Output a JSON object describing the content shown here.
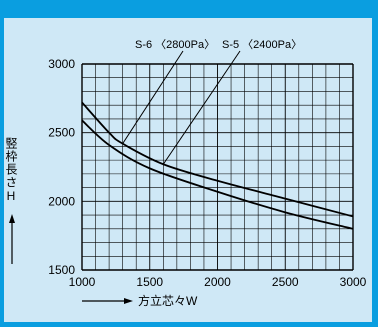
{
  "colors": {
    "frame_border": "#0a9ee0",
    "background": "#cfe8f6",
    "grid": "#000000",
    "curve": "#000000"
  },
  "chart_data": {
    "type": "line",
    "title": "",
    "xlabel": "方立芯々W",
    "ylabel": "竪枠長さH",
    "xlim": [
      1000,
      3000
    ],
    "ylim": [
      1500,
      3000
    ],
    "x_ticks": [
      "1000",
      "1500",
      "2000",
      "2500",
      "3000"
    ],
    "y_ticks": [
      "1500",
      "2000",
      "2500",
      "3000"
    ],
    "x_tick_values": [
      1000,
      1500,
      2000,
      2500,
      3000
    ],
    "y_tick_values": [
      1500,
      2000,
      2500,
      3000
    ],
    "grid": true,
    "x_grid_step": 100,
    "y_grid_step": 100,
    "series": [
      {
        "name": "S-6 〈2800Pa〉",
        "x": [
          1000,
          1200,
          1300,
          1600,
          2000,
          2500,
          3000
        ],
        "y": [
          2720,
          2500,
          2420,
          2270,
          2150,
          2020,
          1890
        ]
      },
      {
        "name": "S-5 〈2400Pa〉",
        "x": [
          1000,
          1200,
          1500,
          2000,
          2500,
          3000
        ],
        "y": [
          2590,
          2410,
          2240,
          2070,
          1920,
          1800
        ]
      }
    ]
  }
}
